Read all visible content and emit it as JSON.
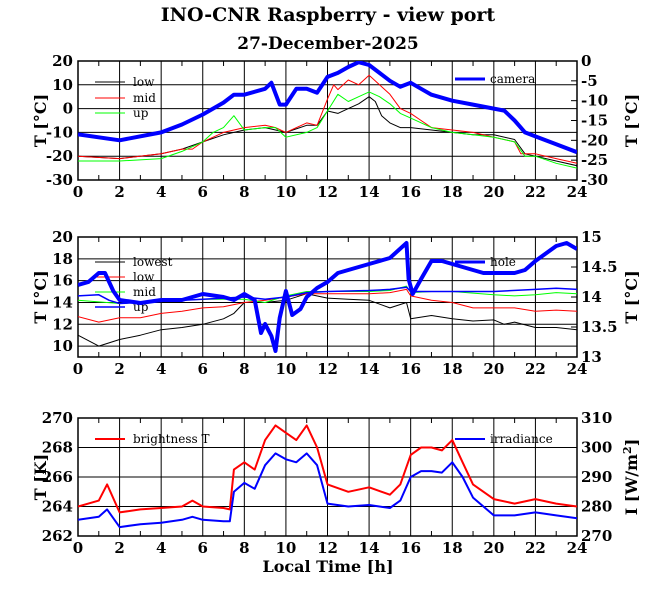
{
  "title": "INO-CNR Raspberry - view port",
  "date": "27-December-2025",
  "xlabel": "Local Time [h]",
  "colors": {
    "black": "#000000",
    "red": "#ff0000",
    "green": "#00ff00",
    "blue": "#0000ff"
  },
  "chart_data": [
    {
      "type": "line",
      "ylabel": "T [°C]",
      "y2label": "T [°C]",
      "xlim": [
        0,
        24
      ],
      "ylim": [
        -30,
        20
      ],
      "y2lim": [
        -30,
        0
      ],
      "xticks": [
        "0",
        "2",
        "4",
        "6",
        "8",
        "10",
        "12",
        "14",
        "16",
        "18",
        "20",
        "22",
        "24"
      ],
      "yticks": [
        "-30",
        "-20",
        "-10",
        "0",
        "10",
        "20"
      ],
      "y2ticks": [
        "-30",
        "-25",
        "-20",
        "-15",
        "-10",
        "-5",
        "0"
      ],
      "series": [
        {
          "name": "low",
          "color": "#000000",
          "axis": "left",
          "width": 1,
          "x": [
            0,
            2,
            4,
            5,
            6,
            7,
            8,
            9,
            10,
            11,
            11.5,
            12,
            12.5,
            13,
            13.5,
            14,
            14.3,
            14.6,
            15,
            15.5,
            16,
            17,
            18,
            19,
            20,
            21,
            21.5,
            22,
            23,
            24
          ],
          "y": [
            -20,
            -21,
            -19,
            -17,
            -14,
            -11,
            -9,
            -8,
            -10,
            -7,
            -7,
            -1,
            -2,
            0,
            2,
            5,
            3,
            -3,
            -6,
            -8,
            -8,
            -9,
            -10,
            -11,
            -11,
            -13,
            -19,
            -20,
            -22,
            -24
          ]
        },
        {
          "name": "mid",
          "color": "#ff0000",
          "axis": "left",
          "width": 1,
          "x": [
            0,
            2,
            4,
            5,
            5.5,
            6,
            6.5,
            7,
            8,
            9,
            9.5,
            10,
            11,
            11.5,
            12,
            12.3,
            12.5,
            13,
            13.5,
            14,
            14.5,
            15,
            15.5,
            16,
            16.5,
            17,
            18,
            19,
            20,
            21,
            21.3,
            22,
            23,
            24
          ],
          "y": [
            -20,
            -21,
            -19,
            -17,
            -17,
            -14,
            -12,
            -10,
            -8,
            -7,
            -8,
            -10,
            -6,
            -7,
            4,
            10,
            8,
            12,
            10,
            14,
            10,
            6,
            0,
            -2,
            -5,
            -8,
            -9,
            -10,
            -12,
            -14,
            -19,
            -19,
            -21,
            -23
          ]
        },
        {
          "name": "up",
          "color": "#00ff00",
          "axis": "left",
          "width": 1,
          "x": [
            0,
            2,
            4,
            5,
            6,
            6.5,
            7,
            7.5,
            8,
            9,
            9.5,
            10,
            11,
            11.5,
            12,
            12.5,
            13,
            13.5,
            14,
            14.5,
            15,
            15.5,
            16,
            17,
            18,
            19,
            20,
            21,
            21.5,
            22,
            23,
            24
          ],
          "y": [
            -22,
            -22,
            -21,
            -18,
            -14,
            -10,
            -8,
            -3,
            -9,
            -8,
            -8,
            -12,
            -10,
            -8,
            -1,
            6,
            3,
            5,
            7,
            5,
            2,
            -2,
            -4,
            -8,
            -10,
            -11,
            -12,
            -14,
            -20,
            -20,
            -23,
            -25
          ]
        },
        {
          "name": "camera",
          "color": "#0000ff",
          "axis": "right",
          "width": 4,
          "x": [
            0,
            2,
            4,
            5,
            6,
            7,
            7.5,
            8,
            9,
            9.3,
            9.7,
            10,
            10.5,
            11,
            11.5,
            12,
            12.5,
            13,
            13.5,
            14,
            14.5,
            15,
            15.5,
            16,
            16.5,
            17,
            18,
            19,
            20,
            20.5,
            21,
            21.5,
            22,
            23,
            24
          ],
          "y": [
            -18.5,
            -20,
            -18,
            -16,
            -13.5,
            -10.5,
            -8.5,
            -8.5,
            -7,
            -5.5,
            -11,
            -11,
            -7,
            -7,
            -8,
            -4,
            -3,
            -1.5,
            -0.3,
            -1,
            -3,
            -5,
            -6.5,
            -5.5,
            -7,
            -8.5,
            -10,
            -11,
            -12,
            -12.5,
            -15,
            -18,
            -19,
            -21,
            -23
          ]
        }
      ],
      "legend": [
        "low",
        "mid",
        "up",
        "camera"
      ]
    },
    {
      "type": "line",
      "ylabel": "T [°C]",
      "y2label": "T [°C]",
      "xlim": [
        0,
        24
      ],
      "ylim": [
        9,
        20
      ],
      "y2lim": [
        13,
        15
      ],
      "xticks": [
        "0",
        "2",
        "4",
        "6",
        "8",
        "10",
        "12",
        "14",
        "16",
        "18",
        "20",
        "22",
        "24"
      ],
      "yticks": [
        "10",
        "12",
        "14",
        "16",
        "18",
        "20"
      ],
      "y2ticks": [
        "13",
        "13.5",
        "14",
        "14.5",
        "15"
      ],
      "series": [
        {
          "name": "lowest",
          "color": "#000000",
          "axis": "left",
          "width": 1,
          "x": [
            0,
            1,
            2,
            3,
            4,
            5,
            6,
            7,
            7.5,
            8,
            9,
            10,
            11,
            12,
            13,
            14,
            15,
            15.8,
            16,
            17,
            18,
            19,
            20,
            20.5,
            21,
            22,
            23,
            24
          ],
          "y": [
            11,
            10,
            10.6,
            11,
            11.5,
            11.7,
            12,
            12.5,
            13,
            14,
            14,
            14.2,
            14.8,
            14.4,
            14.3,
            14.2,
            13.5,
            14,
            12.5,
            12.8,
            12.5,
            12.3,
            12.4,
            12,
            12.2,
            11.7,
            11.7,
            11.5
          ]
        },
        {
          "name": "low",
          "color": "#ff0000",
          "axis": "left",
          "width": 1,
          "x": [
            0,
            1,
            2,
            3,
            4,
            5,
            6,
            7,
            8,
            9,
            10,
            11,
            12,
            13,
            14,
            15,
            15.8,
            16,
            17,
            18,
            19,
            20,
            21,
            22,
            23,
            24
          ],
          "y": [
            12.7,
            12.2,
            12.6,
            12.6,
            13,
            13.2,
            13.5,
            13.6,
            14,
            14.2,
            14.5,
            14.8,
            14.8,
            14.8,
            14.8,
            14.9,
            15.2,
            14.6,
            14.2,
            14,
            13.5,
            13.5,
            13.5,
            13.2,
            13.3,
            13.2
          ]
        },
        {
          "name": "mid",
          "color": "#00ff00",
          "axis": "left",
          "width": 1,
          "x": [
            0,
            2,
            4,
            6,
            8,
            9,
            10,
            11,
            12,
            14,
            15,
            15.8,
            16,
            17,
            18,
            20,
            21,
            22,
            23,
            24
          ],
          "y": [
            14.2,
            13.9,
            14.1,
            14.3,
            14.3,
            14,
            14.6,
            15,
            15,
            15,
            15.1,
            15.5,
            14.9,
            15,
            15,
            14.7,
            14.6,
            14.7,
            14.9,
            14.8
          ]
        },
        {
          "name": "up",
          "color": "#0000ff",
          "axis": "left",
          "width": 1.5,
          "x": [
            0,
            1,
            1.5,
            2,
            4,
            6,
            8,
            9,
            10,
            11,
            12,
            14,
            15,
            15.8,
            16,
            18,
            20,
            22,
            23,
            24
          ],
          "y": [
            14.6,
            14.7,
            14.2,
            13.9,
            14.1,
            14.3,
            14.5,
            14.3,
            14.5,
            14.9,
            15,
            15.1,
            15.2,
            15.4,
            15,
            15,
            15,
            15.2,
            15.3,
            15.2
          ]
        },
        {
          "name": "hole",
          "color": "#0000ff",
          "axis": "right",
          "width": 4,
          "x": [
            0,
            0.5,
            1,
            1.3,
            1.7,
            2,
            3,
            4,
            5,
            6,
            7,
            7.5,
            8,
            8.5,
            8.8,
            9,
            9.3,
            9.5,
            9.7,
            10,
            10.3,
            10.7,
            11,
            11.5,
            12,
            12.5,
            13,
            14,
            15,
            15.8,
            15.9,
            16.1,
            16.5,
            17,
            17.5,
            18,
            19,
            19.5,
            21,
            21.5,
            22,
            23,
            23.5,
            24
          ],
          "y": [
            14.2,
            14.25,
            14.4,
            14.4,
            14.1,
            13.95,
            13.9,
            13.95,
            13.95,
            14.05,
            14,
            13.95,
            14.05,
            13.95,
            13.4,
            13.55,
            13.35,
            13.1,
            13.65,
            14.1,
            13.7,
            13.8,
            14,
            14.15,
            14.25,
            14.4,
            14.45,
            14.55,
            14.65,
            14.9,
            14.3,
            14.05,
            14.3,
            14.6,
            14.6,
            14.55,
            14.45,
            14.4,
            14.4,
            14.45,
            14.6,
            14.85,
            14.9,
            14.8
          ]
        }
      ],
      "legend": [
        "lowest",
        "low",
        "mid",
        "up",
        "hole"
      ]
    },
    {
      "type": "line",
      "ylabel": "T [K]",
      "y2label": "I [W/m",
      "y2label_sup": "2",
      "y2label_end": "]",
      "xlim": [
        0,
        24
      ],
      "ylim": [
        262,
        270
      ],
      "y2lim": [
        270,
        310
      ],
      "xticks": [
        "0",
        "2",
        "4",
        "6",
        "8",
        "10",
        "12",
        "14",
        "16",
        "18",
        "20",
        "22",
        "24"
      ],
      "yticks": [
        "262",
        "264",
        "266",
        "268",
        "270"
      ],
      "y2ticks": [
        "270",
        "280",
        "290",
        "300",
        "310"
      ],
      "series": [
        {
          "name": "brightness T",
          "color": "#ff0000",
          "axis": "left",
          "width": 2,
          "x": [
            0,
            1,
            1.4,
            2,
            3,
            4,
            5,
            5.5,
            6,
            7,
            7.3,
            7.5,
            8,
            8.5,
            9,
            9.5,
            10,
            10.5,
            11,
            11.5,
            12,
            13,
            14,
            15,
            15.5,
            16,
            16.5,
            17,
            17.5,
            18,
            18.5,
            19,
            20,
            21,
            22,
            23,
            24
          ],
          "y": [
            264,
            264.4,
            265.5,
            263.6,
            263.8,
            263.9,
            264,
            264.4,
            264,
            263.9,
            263.8,
            266.5,
            267,
            266.5,
            268.5,
            269.5,
            269,
            268.5,
            269.5,
            268,
            265.5,
            265,
            265.3,
            264.8,
            265.5,
            267.5,
            268,
            268,
            267.8,
            268.5,
            267,
            265.5,
            264.5,
            264.2,
            264.5,
            264.2,
            264
          ]
        },
        {
          "name": "irradiance",
          "color": "#0000ff",
          "axis": "right",
          "width": 2,
          "x": [
            0,
            1,
            1.4,
            2,
            3,
            4,
            5,
            5.5,
            6,
            7,
            7.3,
            7.5,
            8,
            8.5,
            9,
            9.5,
            10,
            10.5,
            11,
            11.5,
            12,
            13,
            14,
            15,
            15.5,
            16,
            16.5,
            17,
            17.5,
            18,
            18.5,
            19,
            20,
            21,
            22,
            23,
            24
          ],
          "y": [
            275.5,
            276.5,
            279,
            273,
            274,
            274.5,
            275.5,
            276.5,
            275.5,
            275,
            275,
            285,
            288,
            286,
            294,
            298,
            296,
            295,
            298,
            294,
            281,
            280,
            280.5,
            279.5,
            282,
            290,
            292,
            292,
            291.5,
            295,
            290,
            283,
            277,
            277,
            278,
            277,
            276
          ]
        }
      ],
      "legend": [
        "brightness T",
        "irradiance"
      ]
    }
  ]
}
